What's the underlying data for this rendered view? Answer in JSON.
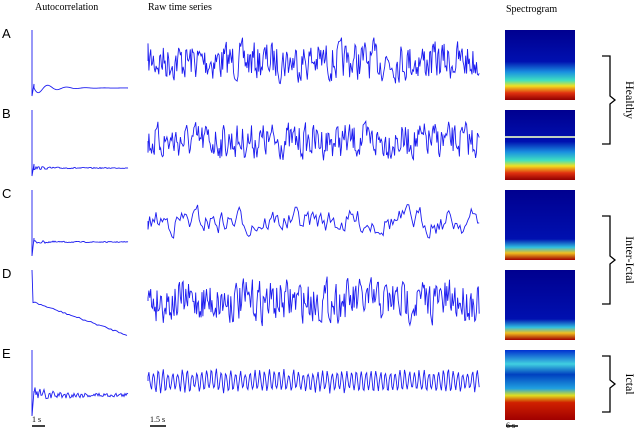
{
  "headers": [
    "Autocorrelation",
    "Raw time series",
    "Spectrogram"
  ],
  "rows": [
    "A",
    "B",
    "C",
    "D",
    "E"
  ],
  "groups": [
    "Healthy",
    "Inter-Ictal",
    "Ictal"
  ],
  "scale_bars": [
    "1 s",
    "1.5 s",
    "6 s"
  ]
}
